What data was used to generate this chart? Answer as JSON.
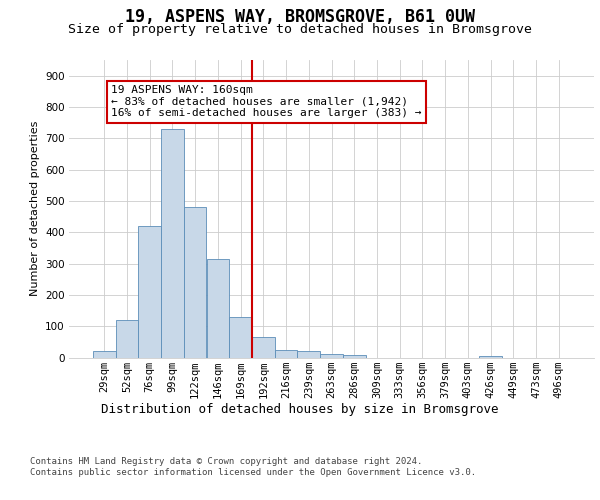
{
  "title1": "19, ASPENS WAY, BROMSGROVE, B61 0UW",
  "title2": "Size of property relative to detached houses in Bromsgrove",
  "xlabel": "Distribution of detached houses by size in Bromsgrove",
  "ylabel": "Number of detached properties",
  "bar_values": [
    20,
    120,
    420,
    730,
    480,
    315,
    130,
    65,
    25,
    20,
    10,
    8,
    0,
    0,
    0,
    0,
    0,
    5,
    0,
    0,
    0
  ],
  "bar_labels": [
    "29sqm",
    "52sqm",
    "76sqm",
    "99sqm",
    "122sqm",
    "146sqm",
    "169sqm",
    "192sqm",
    "216sqm",
    "239sqm",
    "263sqm",
    "286sqm",
    "309sqm",
    "333sqm",
    "356sqm",
    "379sqm",
    "403sqm",
    "426sqm",
    "449sqm",
    "473sqm",
    "496sqm"
  ],
  "bar_color": "#c8d8e8",
  "bar_edge_color": "#5b8db8",
  "vline_x_index": 6,
  "vline_color": "#cc0000",
  "annotation_text": "19 ASPENS WAY: 160sqm\n← 83% of detached houses are smaller (1,942)\n16% of semi-detached houses are larger (383) →",
  "annotation_box_color": "#ffffff",
  "annotation_box_edge_color": "#cc0000",
  "ylim": [
    0,
    950
  ],
  "yticks": [
    0,
    100,
    200,
    300,
    400,
    500,
    600,
    700,
    800,
    900
  ],
  "grid_color": "#cccccc",
  "background_color": "#ffffff",
  "footer_text": "Contains HM Land Registry data © Crown copyright and database right 2024.\nContains public sector information licensed under the Open Government Licence v3.0.",
  "title1_fontsize": 12,
  "title2_fontsize": 9.5,
  "xlabel_fontsize": 9,
  "ylabel_fontsize": 8,
  "tick_fontsize": 7.5,
  "annotation_fontsize": 8,
  "footer_fontsize": 6.5
}
